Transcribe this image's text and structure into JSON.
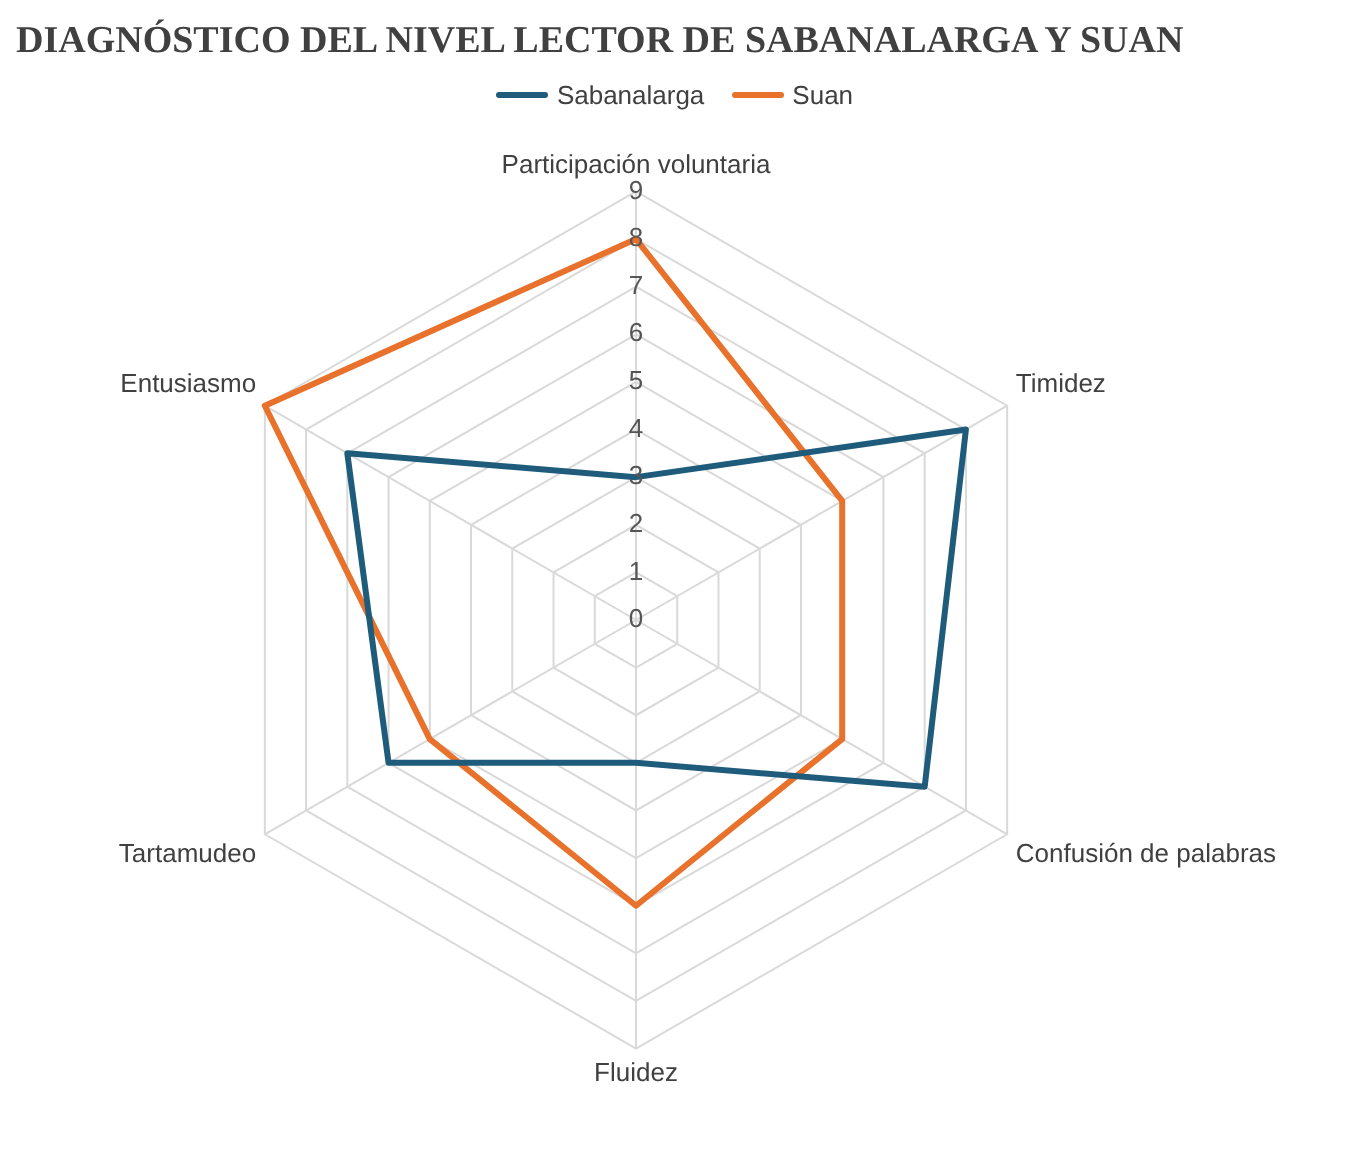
{
  "chart_data": {
    "type": "radar",
    "title": "DIAGNÓSTICO DEL NIVEL LECTOR DE SABANALARGA Y SUAN",
    "categories": [
      "Participación voluntaria",
      "Timidez",
      "Confusión de palabras",
      "Fluidez",
      "Tartamudeo",
      "Entusiasmo"
    ],
    "series": [
      {
        "name": "Sabanalarga",
        "color": "#1f5b7a",
        "values": [
          3,
          8,
          7,
          3,
          6,
          7
        ]
      },
      {
        "name": "Suan",
        "color": "#e8712b",
        "values": [
          8,
          5,
          5,
          6,
          5,
          9
        ]
      }
    ],
    "ylim": [
      0,
      9
    ],
    "yticks": [
      0,
      1,
      2,
      3,
      4,
      5,
      6,
      7,
      8,
      9
    ],
    "grid": true,
    "legend": "top",
    "marker": "none"
  }
}
